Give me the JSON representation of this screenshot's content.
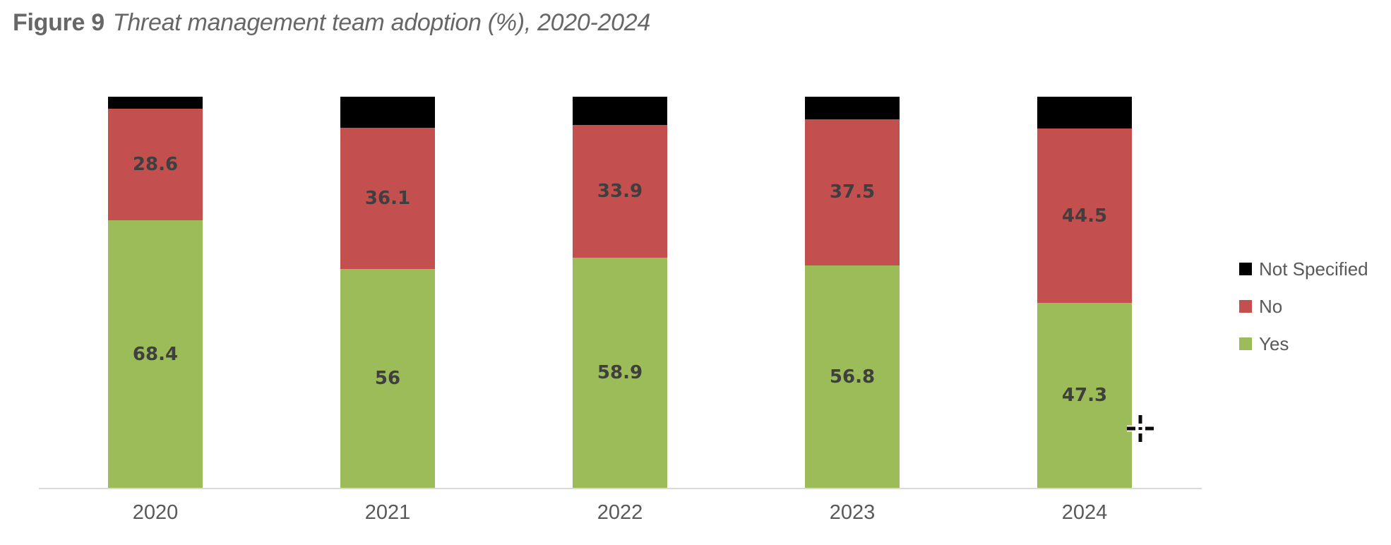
{
  "figure": {
    "label": "Figure 9",
    "title": "Threat management team adoption (%), 2020-2024"
  },
  "chart_data": {
    "type": "bar",
    "stacked": true,
    "orientation": "vertical",
    "unit": "percent",
    "title": "Threat management team adoption (%), 2020-2024",
    "categories": [
      "2020",
      "2021",
      "2022",
      "2023",
      "2024"
    ],
    "series": [
      {
        "name": "Yes",
        "color": "#9bbc59",
        "values": [
          68.4,
          56,
          58.9,
          56.8,
          47.3
        ],
        "display_labels": [
          "68.4",
          "56",
          "58.9",
          "56.8",
          "47.3"
        ],
        "labels_visible": true
      },
      {
        "name": "No",
        "color": "#c34f4e",
        "values": [
          28.6,
          36.1,
          33.9,
          37.5,
          44.5
        ],
        "display_labels": [
          "28.6",
          "36.1",
          "33.9",
          "37.5",
          "44.5"
        ],
        "labels_visible": true
      },
      {
        "name": "Not Specified",
        "color": "#000000",
        "values": [
          3.0,
          7.9,
          7.2,
          5.7,
          8.2
        ],
        "estimated_from_remainder": true,
        "labels_visible": false
      }
    ],
    "ylim": [
      0,
      100
    ],
    "grid": false,
    "y_axis_visible": false,
    "x_axis_line": true,
    "legend_position": "right",
    "legend_order": [
      "Not Specified",
      "No",
      "Yes"
    ],
    "value_label_color": "#3f3f3f",
    "axis_label_color": "#595959"
  },
  "legend": {
    "items": [
      {
        "label": "Not Specified",
        "color": "#000000"
      },
      {
        "label": "No",
        "color": "#c34f4e"
      },
      {
        "label": "Yes",
        "color": "#9bbc59"
      }
    ]
  },
  "cursor": {
    "icon": "precision-select-crosshair"
  }
}
